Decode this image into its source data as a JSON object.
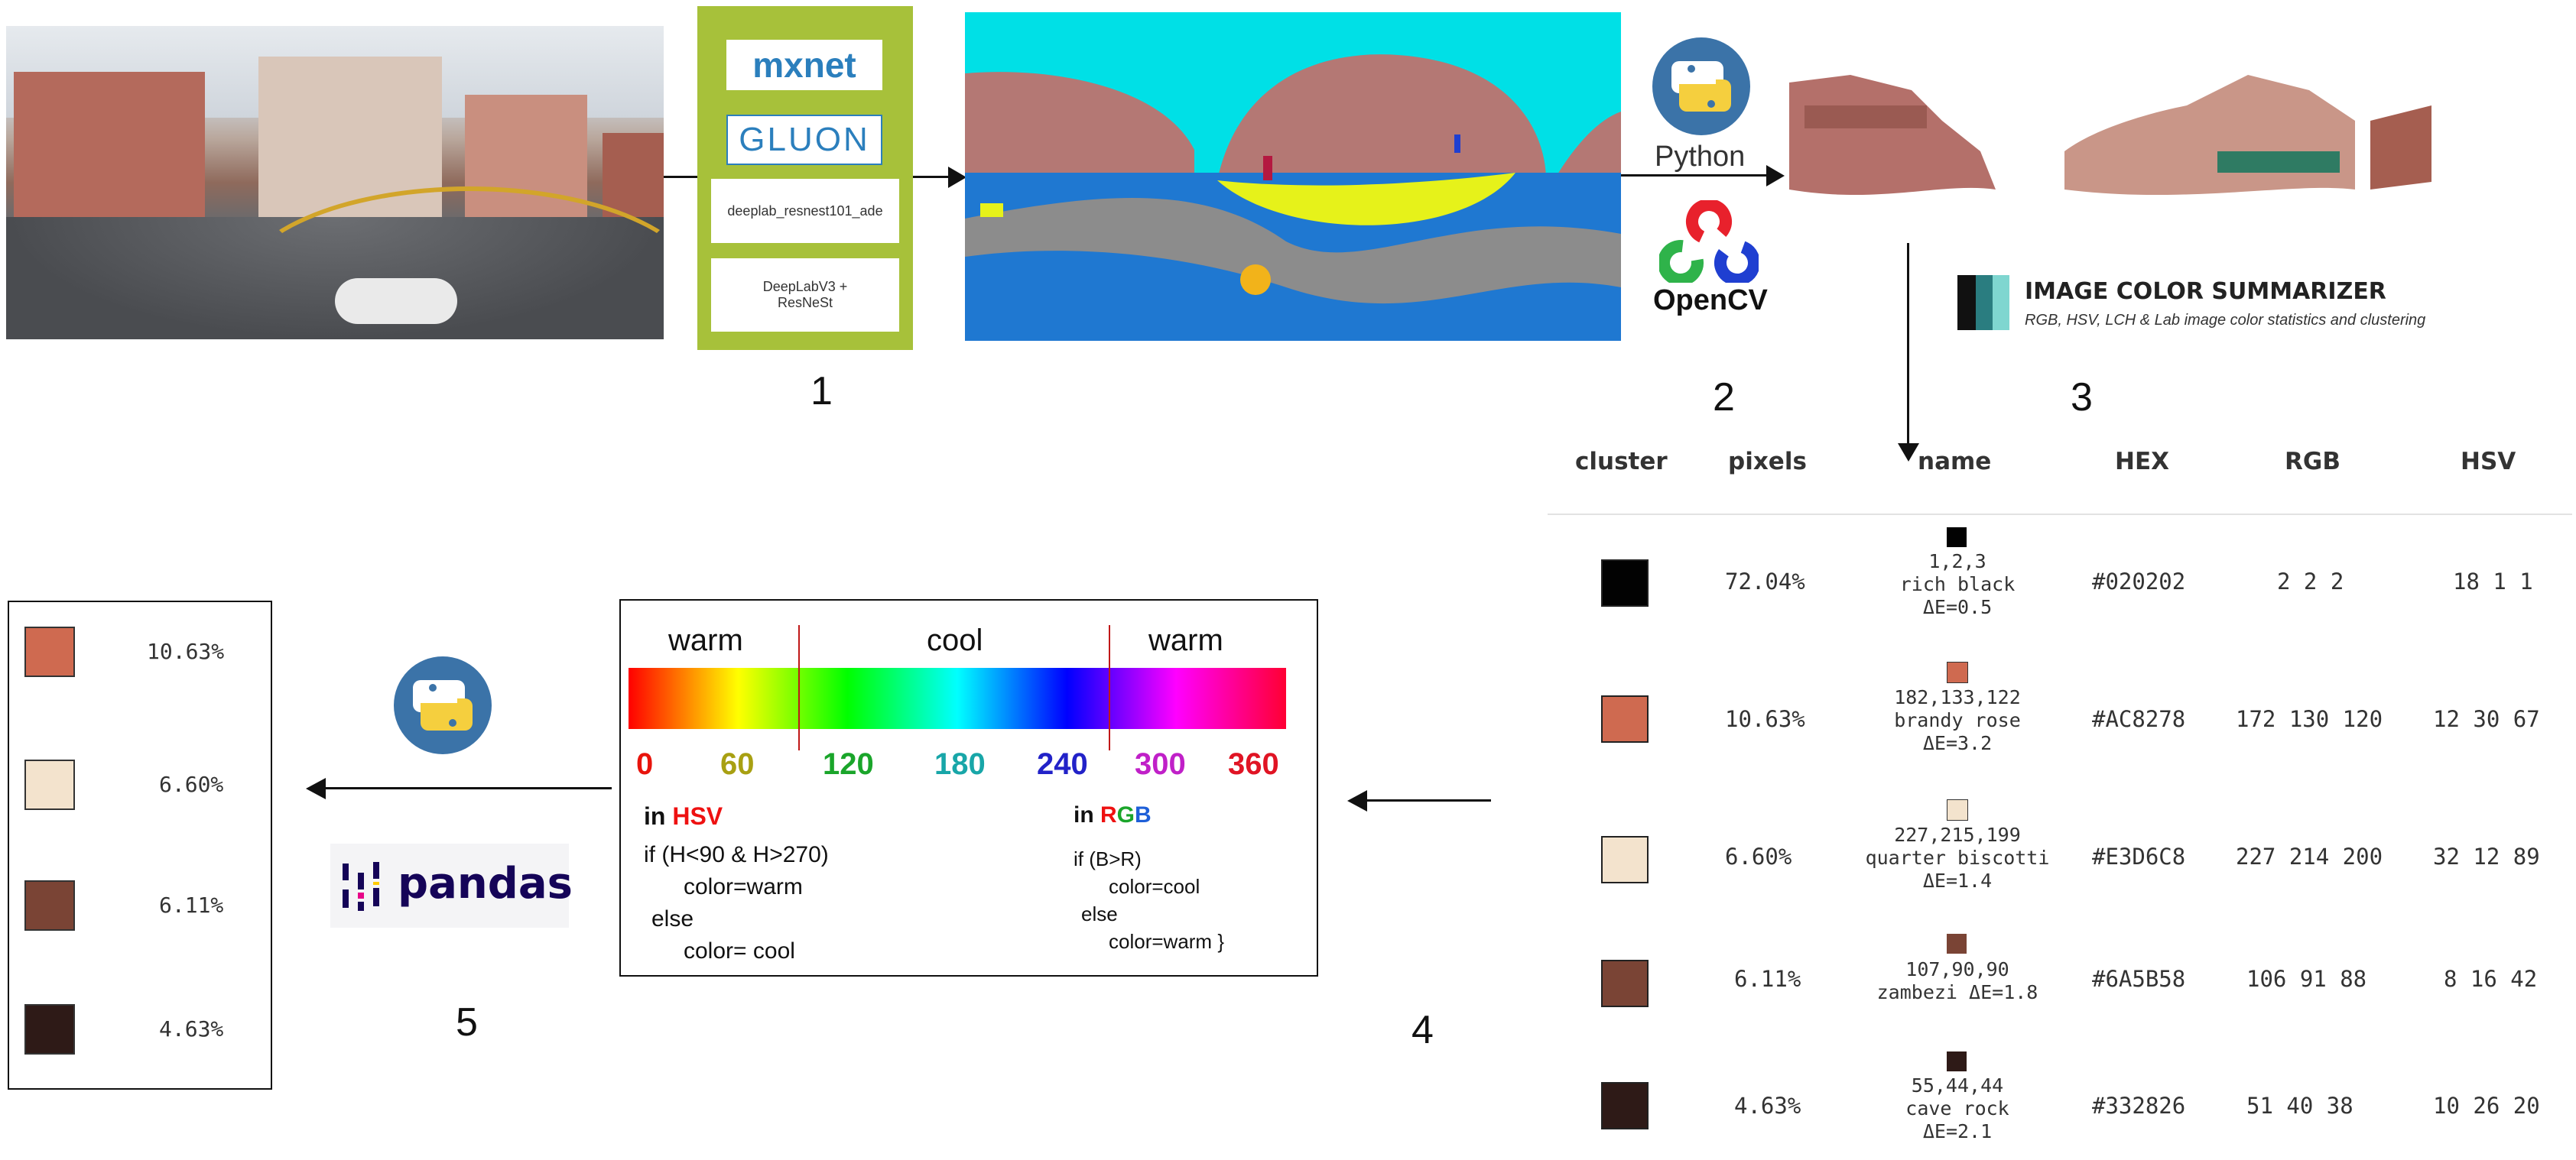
{
  "colors": {
    "model_box": "#a7c13a",
    "seg_sky": "#00e0e6",
    "seg_building": "#b47874",
    "seg_road": "#8c8c8c",
    "seg_sidewalk": "#1f78d1",
    "seg_car": "#e6f21a",
    "hsv_red": "#ee1111",
    "python_blue": "#3b73a8",
    "python_yellow": "#f5cf3e"
  },
  "step1": {
    "number": "1",
    "mxnet": "mxnet",
    "gluon": "GLUON",
    "model": "deeplab_resnest101_ade",
    "arch_line1": "DeepLabV3 +",
    "arch_line2": "ResNeSt"
  },
  "step2": {
    "number": "2",
    "python": "Python",
    "opencv": "OpenCV",
    "icons": [
      "python-icon",
      "opencv-icon"
    ]
  },
  "step3": {
    "number": "3",
    "title": "IMAGE COLOR SUMMARIZER",
    "subtitle": "RGB, HSV, LCH & Lab image color statistics and clustering"
  },
  "table": {
    "headers": [
      "cluster",
      "pixels",
      "name",
      "HEX",
      "RGB",
      "HSV"
    ],
    "rows": [
      {
        "color": "#020202",
        "pixels": "72.04%",
        "rgb_small": "1,2,3",
        "name": "rich black",
        "de": "ΔE=0.5",
        "hex": "#020202",
        "rgb": "2 2 2",
        "hsv": "18 1 1"
      },
      {
        "color": "#cf6a50",
        "pixels": "10.63%",
        "rgb_small": "182,133,122",
        "name": "brandy rose",
        "de": "ΔE=3.2",
        "hex": "#AC8278",
        "rgb": "172 130 120",
        "hsv": "12 30 67"
      },
      {
        "color": "#f3e3cd",
        "pixels": "6.60%",
        "rgb_small": "227,215,199",
        "name": "quarter biscotti",
        "de": "ΔE=1.4",
        "hex": "#E3D6C8",
        "rgb": "227 214 200",
        "hsv": "32 12 89"
      },
      {
        "color": "#7a4435",
        "pixels": "6.11%",
        "rgb_small": "107,90,90",
        "name": "zambezi",
        "de": "ΔE=1.8",
        "hex": "#6A5B58",
        "rgb": "106 91 88",
        "hsv": "8 16 42"
      },
      {
        "color": "#2e1a17",
        "pixels": "4.63%",
        "rgb_small": "55,44,44",
        "name": "cave rock",
        "de": "ΔE=2.1",
        "hex": "#332826",
        "rgb": "51 40 38",
        "hsv": "10 26 20"
      }
    ]
  },
  "step4": {
    "number": "4",
    "warm_left": "warm",
    "cool": "cool",
    "warm_right": "warm",
    "ticks": [
      {
        "label": "0",
        "color": "#e8140c"
      },
      {
        "label": "60",
        "color": "#a8a012"
      },
      {
        "label": "120",
        "color": "#1aa52a"
      },
      {
        "label": "180",
        "color": "#18a6a8"
      },
      {
        "label": "240",
        "color": "#2222c8"
      },
      {
        "label": "300",
        "color": "#c020c8"
      },
      {
        "label": "360",
        "color": "#e01424"
      }
    ],
    "hsv_in": "in ",
    "hsv_label": "HSV",
    "hsv_code": [
      "if (H<90 & H>270)",
      "color=warm",
      "else",
      "color= cool"
    ],
    "rgb_in": "in ",
    "rgb_r": "R",
    "rgb_g": "G",
    "rgb_b": "B",
    "rgb_code": [
      "if (B>R)",
      "color=cool",
      "else",
      "color=warm }"
    ]
  },
  "step5": {
    "number": "5",
    "pandas": "pandas",
    "items": [
      {
        "color": "#cf6a50",
        "pct": "10.63%"
      },
      {
        "color": "#f3e3cd",
        "pct": "6.60%"
      },
      {
        "color": "#7a4435",
        "pct": "6.11%"
      },
      {
        "color": "#2e1a17",
        "pct": "4.63%"
      }
    ]
  }
}
